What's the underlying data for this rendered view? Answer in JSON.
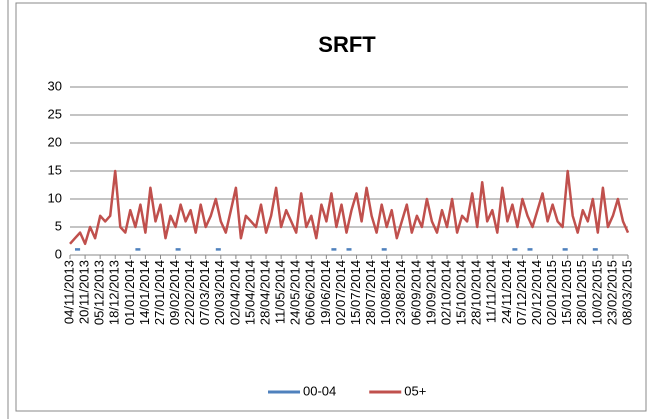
{
  "chart_data": {
    "type": "line",
    "title": "SRFT",
    "categories": [
      "04/11/2013",
      null,
      null,
      "20/11/2013",
      null,
      null,
      "05/12/2013",
      null,
      null,
      "18/12/2013",
      null,
      null,
      "01/01/2014",
      null,
      null,
      "14/01/2014",
      null,
      null,
      "27/01/2014",
      null,
      null,
      "09/02/2014",
      null,
      null,
      "22/02/2014",
      null,
      null,
      "07/03/2014",
      null,
      null,
      "20/03/2014",
      null,
      null,
      "02/04/2014",
      null,
      null,
      "15/04/2014",
      null,
      null,
      "28/04/2014",
      null,
      null,
      "11/05/2014",
      null,
      null,
      "24/05/2014",
      null,
      null,
      "06/06/2014",
      null,
      null,
      "19/06/2014",
      null,
      null,
      "02/07/2014",
      null,
      null,
      "15/07/2014",
      null,
      null,
      "28/07/2014",
      null,
      null,
      "10/08/2014",
      null,
      null,
      "23/08/2014",
      null,
      null,
      "06/09/2014",
      null,
      null,
      "19/09/2014",
      null,
      null,
      "02/10/2014",
      null,
      null,
      "15/10/2014",
      null,
      null,
      "28/10/2014",
      null,
      null,
      "11/11/2014",
      null,
      null,
      "24/11/2014",
      null,
      null,
      "07/12/2014",
      null,
      null,
      "20/12/2014",
      null,
      null,
      "02/01/2015",
      null,
      null,
      "15/01/2015",
      null,
      null,
      "28/01/2015",
      null,
      null,
      "10/02/2015",
      null,
      null,
      "23/02/2015",
      null,
      null,
      "08/03/2015"
    ],
    "series": [
      {
        "name": "00-04",
        "color": "#4f81bd",
        "values": [
          null,
          1,
          1,
          null,
          null,
          null,
          null,
          null,
          null,
          null,
          null,
          null,
          null,
          1,
          1,
          null,
          null,
          null,
          null,
          null,
          null,
          1,
          1,
          null,
          null,
          null,
          null,
          null,
          null,
          1,
          1,
          null,
          null,
          null,
          null,
          null,
          null,
          null,
          null,
          null,
          null,
          null,
          null,
          null,
          null,
          null,
          null,
          null,
          null,
          null,
          null,
          null,
          1,
          1,
          null,
          1,
          1,
          null,
          null,
          null,
          null,
          null,
          1,
          1,
          null,
          null,
          null,
          null,
          null,
          null,
          null,
          null,
          null,
          null,
          null,
          null,
          null,
          null,
          null,
          null,
          null,
          null,
          null,
          null,
          null,
          null,
          null,
          null,
          1,
          1,
          null,
          1,
          1,
          null,
          null,
          null,
          null,
          null,
          1,
          1,
          null,
          null,
          null,
          null,
          1,
          1,
          null,
          null,
          null,
          null,
          null,
          null
        ]
      },
      {
        "name": "05+",
        "color": "#c0504d",
        "values": [
          2,
          3,
          4,
          2,
          5,
          3,
          7,
          6,
          7,
          15,
          5,
          4,
          8,
          5,
          9,
          4,
          12,
          6,
          9,
          3,
          7,
          5,
          9,
          6,
          8,
          4,
          9,
          5,
          7,
          10,
          6,
          4,
          8,
          12,
          3,
          7,
          6,
          5,
          9,
          4,
          7,
          12,
          5,
          8,
          6,
          4,
          11,
          5,
          7,
          3,
          9,
          6,
          11,
          5,
          9,
          4,
          8,
          11,
          6,
          12,
          7,
          4,
          9,
          5,
          8,
          3,
          6,
          9,
          4,
          7,
          5,
          10,
          6,
          4,
          8,
          5,
          10,
          4,
          7,
          6,
          11,
          5,
          13,
          6,
          8,
          4,
          12,
          6,
          9,
          5,
          10,
          7,
          5,
          8,
          11,
          6,
          9,
          6,
          5,
          15,
          7,
          4,
          8,
          6,
          10,
          4,
          12,
          5,
          7,
          10,
          6,
          4
        ]
      }
    ],
    "ylim": [
      0,
      30
    ],
    "yticks": [
      0,
      5,
      10,
      15,
      20,
      25,
      30
    ],
    "grid": true,
    "legend": "bottom"
  }
}
